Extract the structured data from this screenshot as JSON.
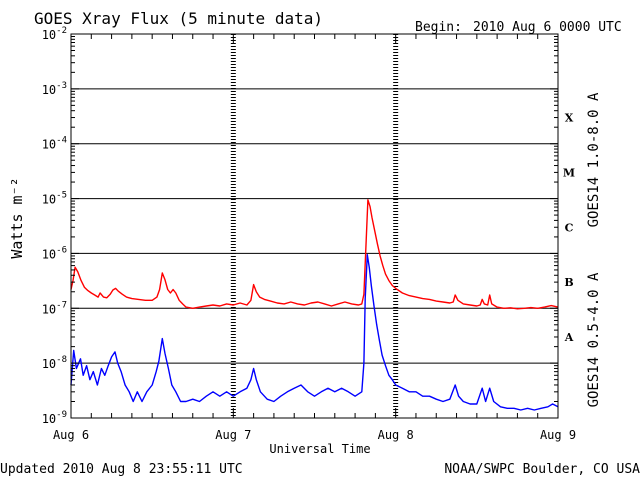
{
  "header": {
    "title": "GOES Xray Flux (5 minute data)",
    "begin_label": "Begin:",
    "begin_value": "2010 Aug 6 0000 UTC"
  },
  "footer": {
    "updated": "Updated 2010 Aug  8 23:55:11 UTC",
    "credit": "NOAA/SWPC Boulder, CO USA"
  },
  "colors": {
    "long_channel": "#ff0000",
    "short_channel": "#0000ff",
    "axes": "#000000",
    "background": "#ffffff"
  },
  "chart_data": {
    "type": "line",
    "title": "GOES Xray Flux (5 minute data)",
    "xlabel": "Universal Time",
    "ylabel": "Watts m⁻²",
    "y_scale": "log",
    "ylim": [
      1e-09,
      0.01
    ],
    "y_ticks": [
      {
        "value": 0.01,
        "base": "10",
        "exp": "-2"
      },
      {
        "value": 0.001,
        "base": "10",
        "exp": "-3"
      },
      {
        "value": 0.0001,
        "base": "10",
        "exp": "-4"
      },
      {
        "value": 1e-05,
        "base": "10",
        "exp": "-5"
      },
      {
        "value": 1e-06,
        "base": "10",
        "exp": "-6"
      },
      {
        "value": 1e-07,
        "base": "10",
        "exp": "-7"
      },
      {
        "value": 1e-08,
        "base": "10",
        "exp": "-8"
      },
      {
        "value": 1e-09,
        "base": "10",
        "exp": "-9"
      }
    ],
    "xlim": [
      0,
      72
    ],
    "x_unit": "hours since 2010 Aug 6 0000 UTC",
    "x_ticks": [
      {
        "value": 0,
        "label": "Aug 6"
      },
      {
        "value": 24,
        "label": "Aug 7"
      },
      {
        "value": 48,
        "label": "Aug 8"
      },
      {
        "value": 72,
        "label": "Aug 9"
      }
    ],
    "grid": "horizontal lines at decades 1e-8 to 1e-3; dashed vertical lines at day boundaries",
    "flare_classes": [
      {
        "label": "X",
        "value": 0.0003
      },
      {
        "label": "M",
        "value": 3e-05
      },
      {
        "label": "C",
        "value": 3e-06
      },
      {
        "label": "B",
        "value": 3e-07
      },
      {
        "label": "A",
        "value": 3e-08
      }
    ],
    "series": [
      {
        "name": "GOES14 1.0-8.0 A",
        "color": "#ff0000",
        "points": [
          [
            0,
            2.2e-07
          ],
          [
            0.3,
            3.2e-07
          ],
          [
            0.6,
            5.6e-07
          ],
          [
            1.0,
            4.6e-07
          ],
          [
            1.5,
            3.2e-07
          ],
          [
            2.0,
            2.4e-07
          ],
          [
            2.5,
            2.1e-07
          ],
          [
            3.0,
            1.9e-07
          ],
          [
            3.5,
            1.75e-07
          ],
          [
            4.0,
            1.6e-07
          ],
          [
            4.3,
            1.9e-07
          ],
          [
            4.8,
            1.6e-07
          ],
          [
            5.3,
            1.55e-07
          ],
          [
            5.8,
            1.8e-07
          ],
          [
            6.2,
            2.15e-07
          ],
          [
            6.6,
            2.3e-07
          ],
          [
            7.0,
            2.05e-07
          ],
          [
            7.6,
            1.8e-07
          ],
          [
            8.2,
            1.6e-07
          ],
          [
            9.0,
            1.5e-07
          ],
          [
            10.0,
            1.45e-07
          ],
          [
            11.0,
            1.4e-07
          ],
          [
            12.0,
            1.4e-07
          ],
          [
            12.7,
            1.6e-07
          ],
          [
            13.1,
            2.2e-07
          ],
          [
            13.5,
            4.4e-07
          ],
          [
            13.9,
            3.3e-07
          ],
          [
            14.3,
            2.2e-07
          ],
          [
            14.7,
            1.9e-07
          ],
          [
            15.1,
            2.2e-07
          ],
          [
            15.5,
            1.9e-07
          ],
          [
            16.0,
            1.4e-07
          ],
          [
            16.5,
            1.2e-07
          ],
          [
            17.0,
            1.05e-07
          ],
          [
            18.0,
            1e-07
          ],
          [
            19.0,
            1.05e-07
          ],
          [
            20.0,
            1.1e-07
          ],
          [
            21.0,
            1.15e-07
          ],
          [
            22.0,
            1.1e-07
          ],
          [
            23.0,
            1.2e-07
          ],
          [
            24.0,
            1.15e-07
          ],
          [
            25.0,
            1.25e-07
          ],
          [
            26.0,
            1.15e-07
          ],
          [
            26.6,
            1.4e-07
          ],
          [
            27.0,
            2.7e-07
          ],
          [
            27.4,
            2e-07
          ],
          [
            27.9,
            1.6e-07
          ],
          [
            28.6,
            1.45e-07
          ],
          [
            29.5,
            1.35e-07
          ],
          [
            30.5,
            1.25e-07
          ],
          [
            31.5,
            1.2e-07
          ],
          [
            32.5,
            1.3e-07
          ],
          [
            33.5,
            1.2e-07
          ],
          [
            34.5,
            1.15e-07
          ],
          [
            35.5,
            1.25e-07
          ],
          [
            36.5,
            1.3e-07
          ],
          [
            37.5,
            1.2e-07
          ],
          [
            38.5,
            1.1e-07
          ],
          [
            39.5,
            1.2e-07
          ],
          [
            40.5,
            1.3e-07
          ],
          [
            41.5,
            1.2e-07
          ],
          [
            42.5,
            1.15e-07
          ],
          [
            43.0,
            1.2e-07
          ],
          [
            43.3,
            1.8e-07
          ],
          [
            43.6,
            1.3e-06
          ],
          [
            43.9,
            9.5e-06
          ],
          [
            44.2,
            7.2e-06
          ],
          [
            44.5,
            4.5e-06
          ],
          [
            44.9,
            2.6e-06
          ],
          [
            45.3,
            1.5e-06
          ],
          [
            45.7,
            9e-07
          ],
          [
            46.1,
            6e-07
          ],
          [
            46.5,
            4.2e-07
          ],
          [
            47.0,
            3.2e-07
          ],
          [
            47.5,
            2.6e-07
          ],
          [
            48.0,
            2.3e-07
          ],
          [
            49.0,
            1.9e-07
          ],
          [
            50.0,
            1.7e-07
          ],
          [
            51.0,
            1.6e-07
          ],
          [
            52.0,
            1.5e-07
          ],
          [
            53.0,
            1.45e-07
          ],
          [
            54.0,
            1.35e-07
          ],
          [
            55.0,
            1.3e-07
          ],
          [
            56.0,
            1.25e-07
          ],
          [
            56.5,
            1.3e-07
          ],
          [
            56.8,
            1.75e-07
          ],
          [
            57.2,
            1.4e-07
          ],
          [
            58.0,
            1.2e-07
          ],
          [
            59.0,
            1.15e-07
          ],
          [
            60.0,
            1.1e-07
          ],
          [
            60.5,
            1.15e-07
          ],
          [
            60.8,
            1.45e-07
          ],
          [
            61.1,
            1.2e-07
          ],
          [
            61.6,
            1.15e-07
          ],
          [
            61.9,
            1.75e-07
          ],
          [
            62.2,
            1.2e-07
          ],
          [
            63.0,
            1.05e-07
          ],
          [
            64.0,
            1e-07
          ],
          [
            65.0,
            1.02e-07
          ],
          [
            66.0,
            9.8e-08
          ],
          [
            67.0,
            1e-07
          ],
          [
            68.0,
            1.03e-07
          ],
          [
            69.0,
            1e-07
          ],
          [
            70.0,
            1.05e-07
          ],
          [
            71.0,
            1.12e-07
          ],
          [
            72.0,
            1.05e-07
          ]
        ]
      },
      {
        "name": "GOES14 0.5-4.0 A",
        "color": "#0000ff",
        "points": [
          [
            0,
            4e-09
          ],
          [
            0.4,
            1.7e-08
          ],
          [
            0.8,
            8e-09
          ],
          [
            1.4,
            1.2e-08
          ],
          [
            1.8,
            6e-09
          ],
          [
            2.3,
            9e-09
          ],
          [
            2.8,
            5e-09
          ],
          [
            3.3,
            7e-09
          ],
          [
            3.9,
            4e-09
          ],
          [
            4.5,
            8e-09
          ],
          [
            5.0,
            6e-09
          ],
          [
            5.5,
            9e-09
          ],
          [
            6.0,
            1.3e-08
          ],
          [
            6.5,
            1.6e-08
          ],
          [
            6.9,
            1e-08
          ],
          [
            7.4,
            7e-09
          ],
          [
            8.0,
            4e-09
          ],
          [
            8.6,
            3e-09
          ],
          [
            9.2,
            2e-09
          ],
          [
            9.8,
            3e-09
          ],
          [
            10.5,
            2e-09
          ],
          [
            11.2,
            3e-09
          ],
          [
            12.0,
            4e-09
          ],
          [
            12.6,
            7e-09
          ],
          [
            13.0,
            1.1e-08
          ],
          [
            13.5,
            2.8e-08
          ],
          [
            13.9,
            1.5e-08
          ],
          [
            14.4,
            8e-09
          ],
          [
            14.9,
            4e-09
          ],
          [
            15.5,
            3e-09
          ],
          [
            16.2,
            2e-09
          ],
          [
            17.0,
            2e-09
          ],
          [
            18.0,
            2.2e-09
          ],
          [
            19.0,
            2e-09
          ],
          [
            20.0,
            2.5e-09
          ],
          [
            21.0,
            3e-09
          ],
          [
            22.0,
            2.5e-09
          ],
          [
            23.0,
            3e-09
          ],
          [
            24.0,
            2.5e-09
          ],
          [
            25.0,
            3e-09
          ],
          [
            26.0,
            3.5e-09
          ],
          [
            26.6,
            5e-09
          ],
          [
            27.0,
            8e-09
          ],
          [
            27.4,
            5e-09
          ],
          [
            28.0,
            3e-09
          ],
          [
            29.0,
            2.2e-09
          ],
          [
            30.0,
            2e-09
          ],
          [
            31.0,
            2.5e-09
          ],
          [
            32.0,
            3e-09
          ],
          [
            33.0,
            3.5e-09
          ],
          [
            34.0,
            4e-09
          ],
          [
            35.0,
            3e-09
          ],
          [
            36.0,
            2.5e-09
          ],
          [
            37.0,
            3e-09
          ],
          [
            38.0,
            3.5e-09
          ],
          [
            39.0,
            3e-09
          ],
          [
            40.0,
            3.5e-09
          ],
          [
            41.0,
            3e-09
          ],
          [
            42.0,
            2.5e-09
          ],
          [
            43.0,
            3e-09
          ],
          [
            43.3,
            1e-08
          ],
          [
            43.5,
            1.5e-07
          ],
          [
            43.8,
            9.5e-07
          ],
          [
            44.1,
            5.5e-07
          ],
          [
            44.4,
            2.6e-07
          ],
          [
            44.8,
            1.1e-07
          ],
          [
            45.2,
            5e-08
          ],
          [
            45.6,
            2.6e-08
          ],
          [
            46.0,
            1.4e-08
          ],
          [
            46.5,
            9e-09
          ],
          [
            47.0,
            6e-09
          ],
          [
            47.5,
            5e-09
          ],
          [
            48.0,
            4e-09
          ],
          [
            49.0,
            3.5e-09
          ],
          [
            50.0,
            3e-09
          ],
          [
            51.0,
            3e-09
          ],
          [
            52.0,
            2.5e-09
          ],
          [
            53.0,
            2.5e-09
          ],
          [
            54.0,
            2.2e-09
          ],
          [
            55.0,
            2e-09
          ],
          [
            56.0,
            2.2e-09
          ],
          [
            56.8,
            4e-09
          ],
          [
            57.3,
            2.5e-09
          ],
          [
            58.0,
            2e-09
          ],
          [
            59.0,
            1.8e-09
          ],
          [
            60.0,
            1.8e-09
          ],
          [
            60.8,
            3.5e-09
          ],
          [
            61.3,
            2e-09
          ],
          [
            61.9,
            3.5e-09
          ],
          [
            62.5,
            2e-09
          ],
          [
            63.5,
            1.6e-09
          ],
          [
            64.5,
            1.5e-09
          ],
          [
            65.5,
            1.5e-09
          ],
          [
            66.5,
            1.4e-09
          ],
          [
            67.5,
            1.5e-09
          ],
          [
            68.5,
            1.4e-09
          ],
          [
            69.5,
            1.5e-09
          ],
          [
            70.5,
            1.6e-09
          ],
          [
            71.2,
            1.8e-09
          ],
          [
            72.0,
            1.6e-09
          ]
        ]
      }
    ]
  }
}
